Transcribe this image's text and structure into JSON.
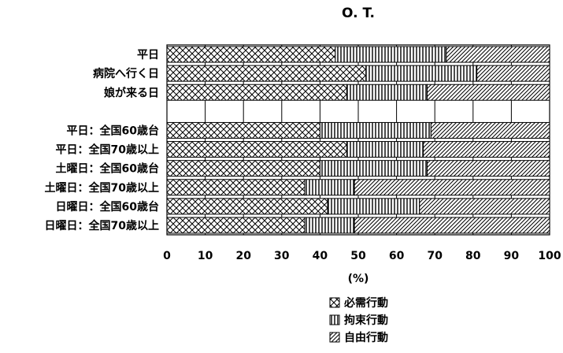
{
  "chart_data": {
    "type": "bar",
    "orientation": "horizontal",
    "stacked": true,
    "title": "O. T.",
    "xlabel": "(%)",
    "ylabel": "",
    "xlim": [
      0,
      100
    ],
    "xticks": [
      "0",
      "10",
      "20",
      "30",
      "40",
      "50",
      "60",
      "70",
      "80",
      "90",
      "100"
    ],
    "categories": [
      "平日",
      "病院へ行く日",
      "娘が来る日",
      "",
      "平日：全国60歳台",
      "平日：全国70歳以上",
      "土曜日：全国60歳台",
      "土曜日：全国70歳以上",
      "日曜日：全国60歳台",
      "日曜日：全国70歳以上"
    ],
    "series": [
      {
        "name": "必需行動",
        "pattern": "crosshatch",
        "values": [
          44,
          52,
          47,
          null,
          40,
          47,
          40,
          36,
          42,
          36
        ]
      },
      {
        "name": "拘束行動",
        "pattern": "vertical",
        "values": [
          29,
          29,
          21,
          null,
          29,
          20,
          28,
          13,
          24,
          13
        ]
      },
      {
        "name": "自由行動",
        "pattern": "diagonal",
        "values": [
          27,
          19,
          32,
          null,
          31,
          33,
          32,
          51,
          34,
          51
        ]
      }
    ],
    "grid": true,
    "legend_position": "bottom-right"
  }
}
